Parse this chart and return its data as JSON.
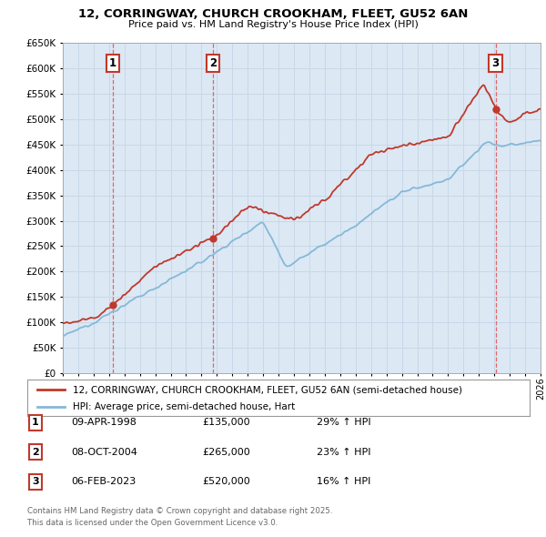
{
  "title1": "12, CORRINGWAY, CHURCH CROOKHAM, FLEET, GU52 6AN",
  "title2": "Price paid vs. HM Land Registry's House Price Index (HPI)",
  "legend_line1": "12, CORRINGWAY, CHURCH CROOKHAM, FLEET, GU52 6AN (semi-detached house)",
  "legend_line2": "HPI: Average price, semi-detached house, Hart",
  "transaction1_date": "09-APR-1998",
  "transaction1_price": "£135,000",
  "transaction1_hpi": "29% ↑ HPI",
  "transaction2_date": "08-OCT-2004",
  "transaction2_price": "£265,000",
  "transaction2_hpi": "23% ↑ HPI",
  "transaction3_date": "06-FEB-2023",
  "transaction3_price": "£520,000",
  "transaction3_hpi": "16% ↑ HPI",
  "footnote1": "Contains HM Land Registry data © Crown copyright and database right 2025.",
  "footnote2": "This data is licensed under the Open Government Licence v3.0.",
  "red_color": "#c0392b",
  "blue_color": "#85b8d8",
  "dashed_color": "#e05050",
  "background_color": "#ffffff",
  "grid_color": "#c8d8e8",
  "plot_bg_color": "#dce8f4",
  "ylim_min": 0,
  "ylim_max": 650000,
  "year_start": 1995,
  "year_end": 2026
}
